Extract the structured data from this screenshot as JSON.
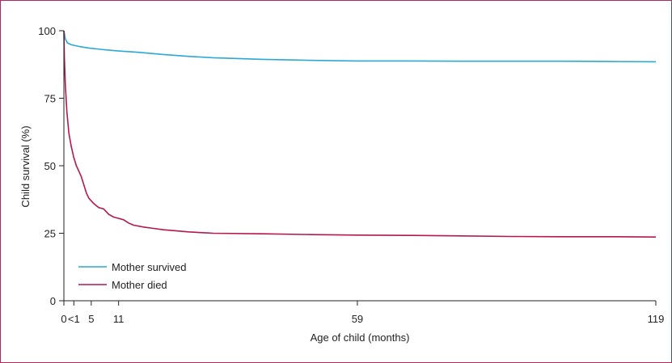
{
  "chart_data": {
    "type": "line",
    "title": "",
    "xlabel": "Age of child (months)",
    "ylabel": "Child survival (%)",
    "xlim": [
      0,
      119
    ],
    "ylim": [
      0,
      100
    ],
    "x_ticks": [
      {
        "label": "0",
        "value": 0
      },
      {
        "label": "<1",
        "value": 2
      },
      {
        "label": "5",
        "value": 5.5
      },
      {
        "label": "11",
        "value": 11
      },
      {
        "label": "59",
        "value": 59
      },
      {
        "label": "119",
        "value": 119
      }
    ],
    "y_ticks": [
      0,
      25,
      50,
      75,
      100
    ],
    "grid": false,
    "legend_position": "bottom-left",
    "series": [
      {
        "name": "Mother survived",
        "color": "#2aa9d6",
        "points": [
          [
            0,
            100
          ],
          [
            0.3,
            97
          ],
          [
            0.7,
            95.5
          ],
          [
            1.5,
            94.8
          ],
          [
            3,
            94.2
          ],
          [
            5,
            93.6
          ],
          [
            8,
            93
          ],
          [
            11,
            92.5
          ],
          [
            15,
            92
          ],
          [
            20,
            91.2
          ],
          [
            25,
            90.5
          ],
          [
            30,
            90
          ],
          [
            40,
            89.4
          ],
          [
            50,
            89
          ],
          [
            59,
            88.8
          ],
          [
            70,
            88.8
          ],
          [
            80,
            88.7
          ],
          [
            90,
            88.7
          ],
          [
            100,
            88.7
          ],
          [
            110,
            88.6
          ],
          [
            119,
            88.5
          ]
        ]
      },
      {
        "name": "Mother died",
        "color": "#b5174e",
        "points": [
          [
            0,
            100
          ],
          [
            0.1,
            90
          ],
          [
            0.3,
            80
          ],
          [
            0.6,
            70
          ],
          [
            1,
            62
          ],
          [
            1.5,
            57
          ],
          [
            2,
            53
          ],
          [
            2.5,
            50
          ],
          [
            3,
            48
          ],
          [
            3.5,
            46
          ],
          [
            4,
            43
          ],
          [
            4.5,
            40
          ],
          [
            5,
            38
          ],
          [
            6,
            36
          ],
          [
            7,
            34.5
          ],
          [
            8,
            34
          ],
          [
            9,
            32
          ],
          [
            10,
            31
          ],
          [
            11,
            30.5
          ],
          [
            12,
            30
          ],
          [
            13,
            28.8
          ],
          [
            14,
            28
          ],
          [
            16,
            27.3
          ],
          [
            18,
            26.8
          ],
          [
            20,
            26.3
          ],
          [
            22,
            26
          ],
          [
            25,
            25.5
          ],
          [
            30,
            25
          ],
          [
            40,
            24.8
          ],
          [
            50,
            24.5
          ],
          [
            59,
            24.3
          ],
          [
            70,
            24.2
          ],
          [
            80,
            24
          ],
          [
            90,
            23.8
          ],
          [
            100,
            23.7
          ],
          [
            110,
            23.7
          ],
          [
            119,
            23.6
          ]
        ]
      }
    ]
  }
}
